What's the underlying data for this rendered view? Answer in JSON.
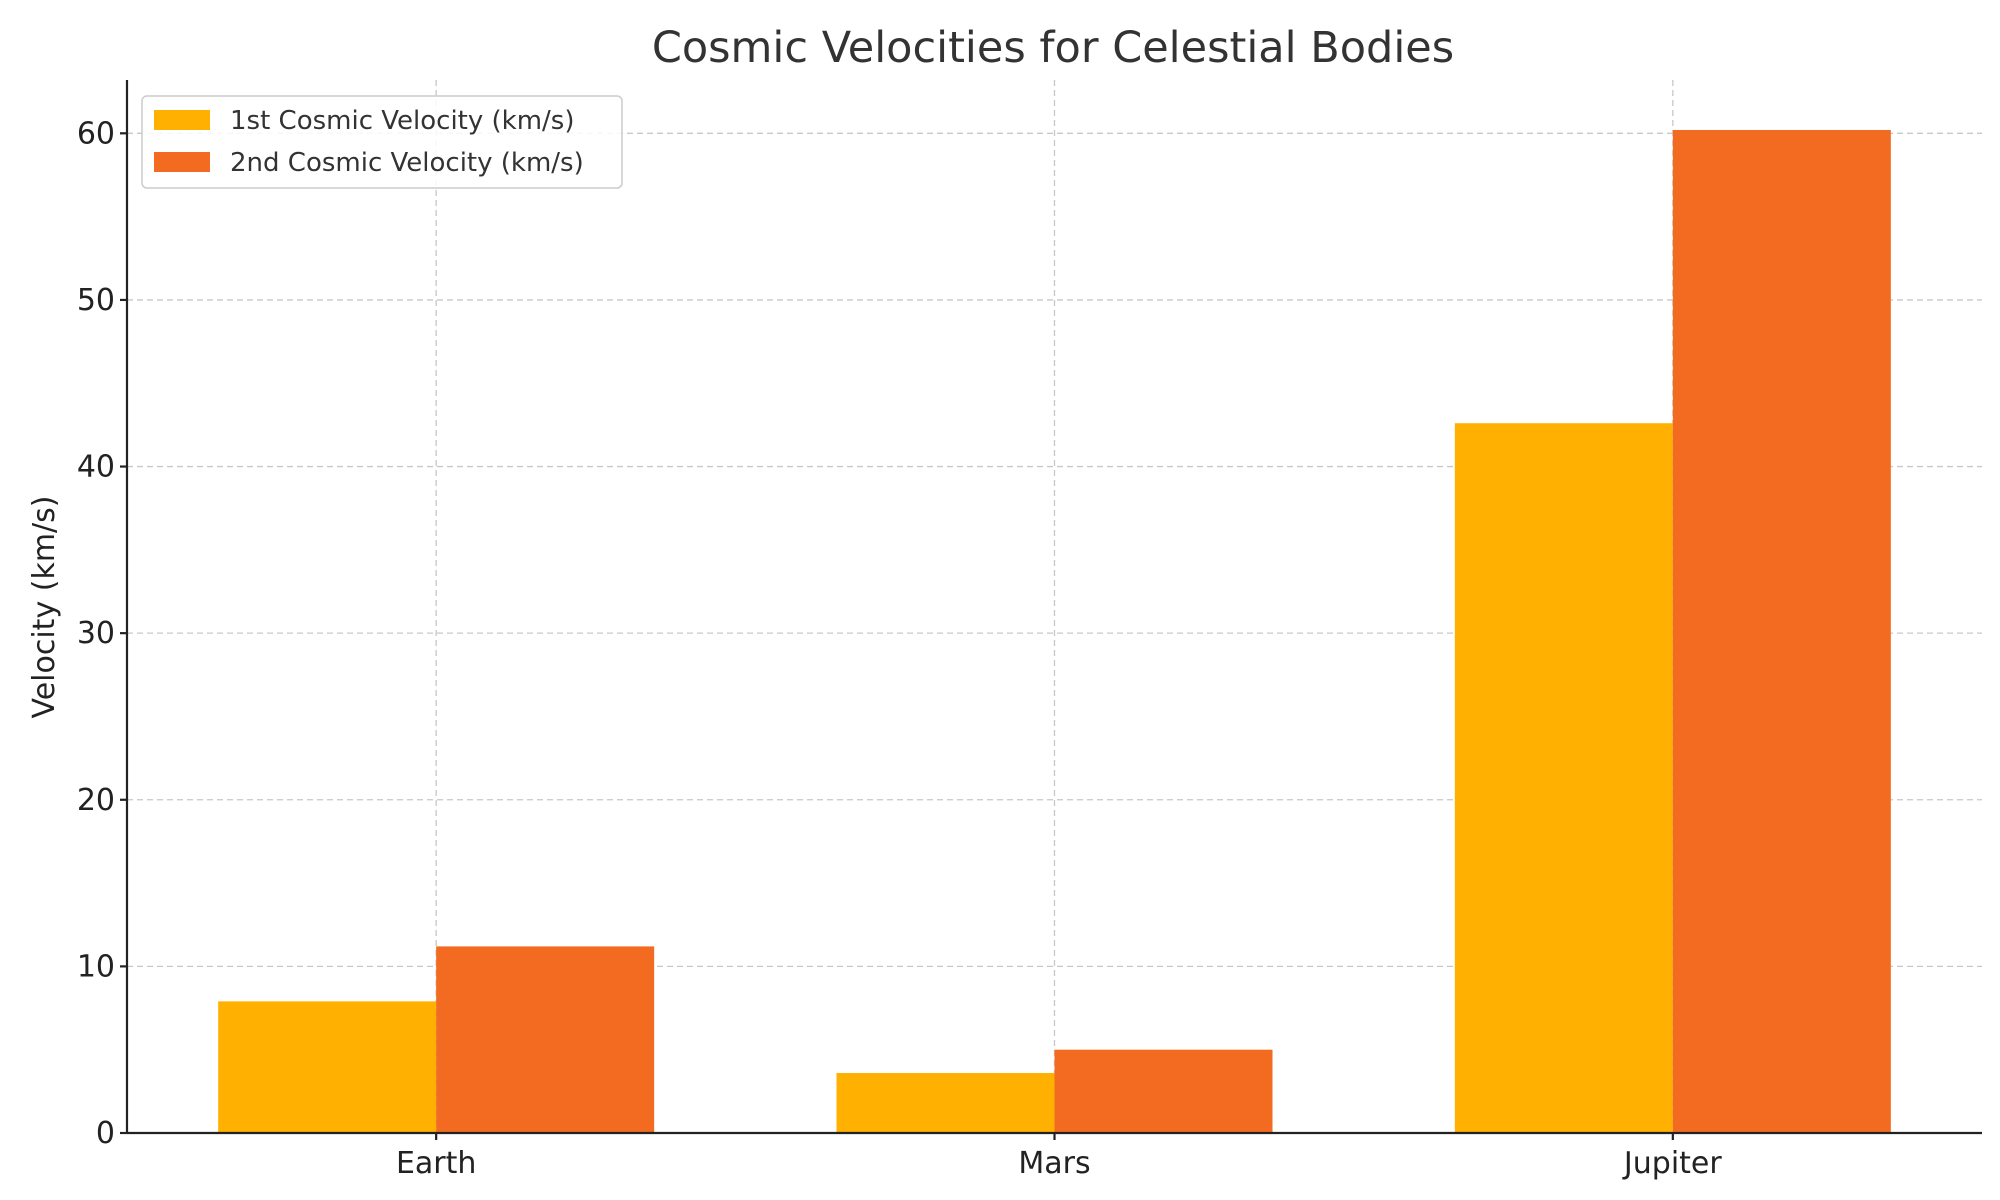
{
  "chart_data": {
    "type": "bar",
    "title": "Cosmic Velocities for Celestial Bodies",
    "xlabel": "",
    "ylabel": "Velocity (km/s)",
    "categories": [
      "Earth",
      "Mars",
      "Jupiter"
    ],
    "series": [
      {
        "name": "1st Cosmic Velocity (km/s)",
        "values": [
          7.9,
          3.6,
          42.6
        ],
        "color": "#FFB000"
      },
      {
        "name": "2nd Cosmic Velocity (km/s)",
        "values": [
          11.2,
          5.0,
          60.2
        ],
        "color": "#F26B21"
      }
    ],
    "ylim": [
      0,
      63.2
    ],
    "yticks": [
      0,
      10,
      20,
      30,
      40,
      50,
      60
    ],
    "grid": true,
    "legend_position": "top-left"
  }
}
